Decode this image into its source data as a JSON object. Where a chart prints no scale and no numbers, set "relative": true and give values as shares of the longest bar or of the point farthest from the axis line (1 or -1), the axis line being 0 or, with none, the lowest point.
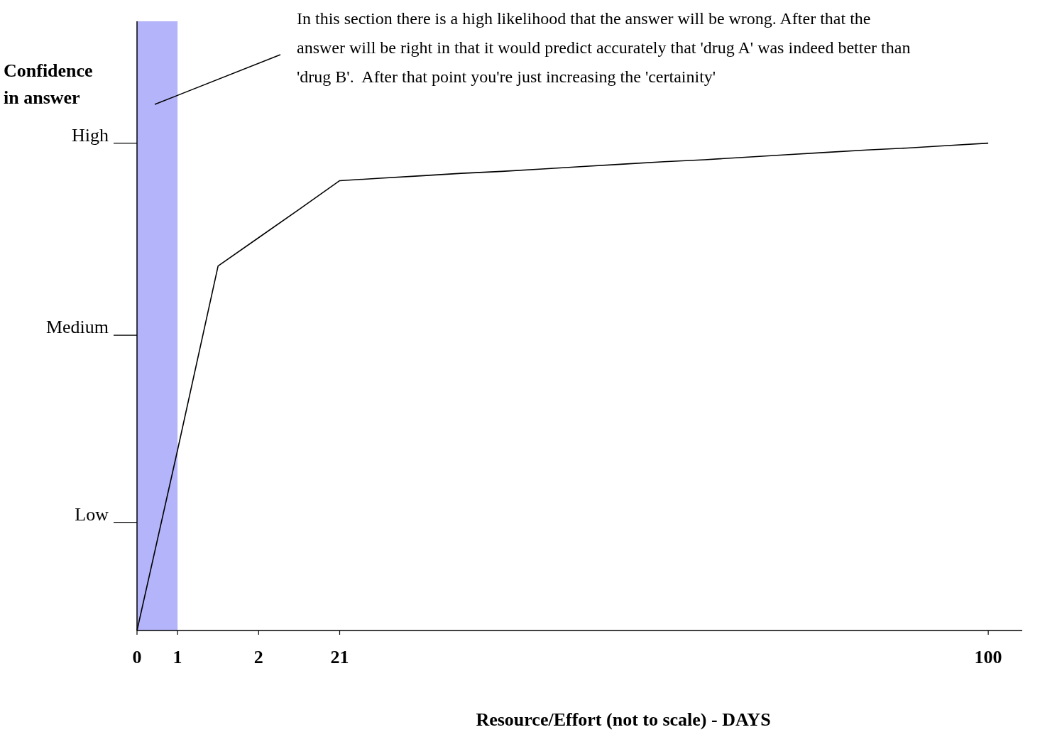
{
  "chart_data": {
    "type": "line",
    "xlabel": "Resource/Effort (not to scale) - DAYS",
    "ylabel": "Confidence in answer",
    "relative": true,
    "categories": [
      "0",
      "1",
      null,
      "2",
      null,
      "21",
      null,
      null,
      null,
      null,
      null,
      null,
      null,
      null,
      null,
      null,
      null,
      null,
      null,
      null,
      null,
      "100",
      null
    ],
    "series": [
      {
        "color": "#000000",
        "values": [
          0,
          0.37,
          0.748,
          0.806,
          0.864,
          0.923,
          0.928,
          0.933,
          0.938,
          0.942,
          0.947,
          0.952,
          0.957,
          0.962,
          0.966,
          0.971,
          0.976,
          0.981,
          0.986,
          0.99,
          0.995,
          1,
          null
        ]
      }
    ],
    "bands": [
      {
        "axis": "x",
        "from": "0",
        "to": "1",
        "color": "#b4b4fa"
      }
    ],
    "annotations": [
      "In this section there is a high likelihood that the answer will be wrong. After that the answer will be right in that it would predict accurately that 'drug A' was indeed better than 'drug B'.  After that point you're just increasing the 'certainity'",
      "Low",
      "Medium",
      "High"
    ],
    "marker": "none",
    "line_style": "solid"
  }
}
